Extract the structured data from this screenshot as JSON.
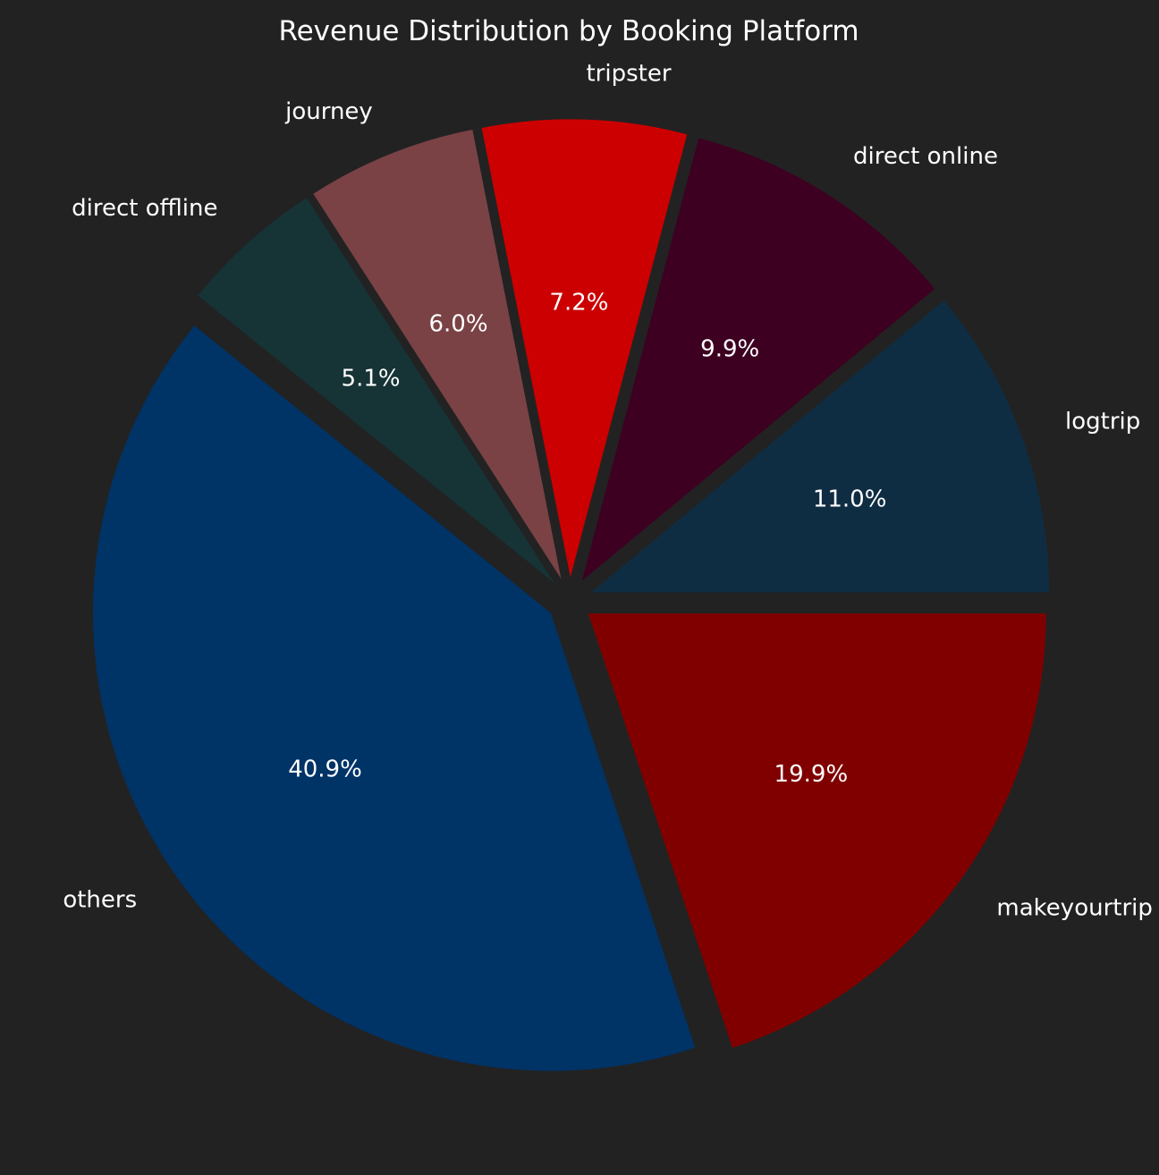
{
  "chart_data": {
    "type": "pie",
    "title": "Revenue Distribution by Booking Platform",
    "background": "#222222",
    "slices": [
      {
        "label": "logtrip",
        "value": 11.0,
        "pct_label": "11.0%",
        "color": "#0f2d42"
      },
      {
        "label": "direct online",
        "value": 9.9,
        "pct_label": "9.9%",
        "color": "#3d0021"
      },
      {
        "label": "tripster",
        "value": 7.2,
        "pct_label": "7.2%",
        "color": "#cc0000"
      },
      {
        "label": "journey",
        "value": 6.0,
        "pct_label": "6.0%",
        "color": "#7a4245"
      },
      {
        "label": "direct offline",
        "value": 5.1,
        "pct_label": "5.1%",
        "color": "#163336"
      },
      {
        "label": "others",
        "value": 40.9,
        "pct_label": "40.9%",
        "color": "#003366"
      },
      {
        "label": "makeyourtrip",
        "value": 19.9,
        "pct_label": "19.9%",
        "color": "#800000"
      }
    ]
  }
}
